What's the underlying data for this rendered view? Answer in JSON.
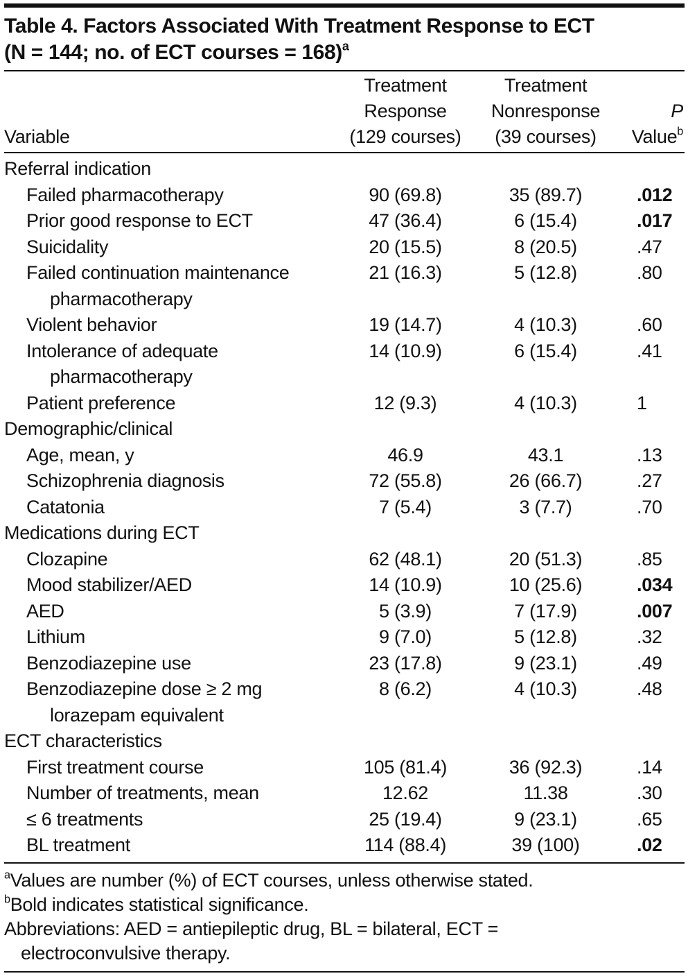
{
  "header": {
    "title_lines": [
      "Table 4. Factors Associated With Treatment Response to ECT",
      "(N = 144; no. of ECT courses = 168)"
    ],
    "title_footnote": "a"
  },
  "table": {
    "columns": [
      {
        "lines": [
          "Variable"
        ]
      },
      {
        "lines": [
          "Treatment",
          "Response",
          "(129 courses)"
        ]
      },
      {
        "lines": [
          "Treatment",
          "Nonresponse",
          "(39 courses)"
        ]
      },
      {
        "lines": [
          "P",
          "Value"
        ],
        "footnote": "b"
      }
    ],
    "sections": [
      {
        "name": "Referral indication",
        "rows": [
          {
            "variable": "Failed pharmacotherapy",
            "response": "90 (69.8)",
            "nonresponse": "35 (89.7)",
            "p": ".012",
            "significant": true
          },
          {
            "variable": "Prior good response to ECT",
            "response": "47 (36.4)",
            "nonresponse": "6 (15.4)",
            "p": ".017",
            "significant": true
          },
          {
            "variable": "Suicidality",
            "response": "20 (15.5)",
            "nonresponse": "8 (20.5)",
            "p": ".47",
            "significant": false
          },
          {
            "variable": "Failed continuation maintenance pharmacotherapy",
            "response": "21 (16.3)",
            "nonresponse": "5 (12.8)",
            "p": ".80",
            "significant": false
          },
          {
            "variable": "Violent behavior",
            "response": "19 (14.7)",
            "nonresponse": "4 (10.3)",
            "p": ".60",
            "significant": false
          },
          {
            "variable": "Intolerance of adequate pharmacotherapy",
            "response": "14 (10.9)",
            "nonresponse": "6 (15.4)",
            "p": ".41",
            "significant": false
          },
          {
            "variable": "Patient preference",
            "response": "12 (9.3)",
            "nonresponse": "4 (10.3)",
            "p": "1",
            "significant": false
          }
        ]
      },
      {
        "name": "Demographic/clinical",
        "rows": [
          {
            "variable": "Age, mean, y",
            "response": "46.9",
            "nonresponse": "43.1",
            "p": ".13",
            "significant": false
          },
          {
            "variable": "Schizophrenia diagnosis",
            "response": "72 (55.8)",
            "nonresponse": "26 (66.7)",
            "p": ".27",
            "significant": false
          },
          {
            "variable": "Catatonia",
            "response": "7 (5.4)",
            "nonresponse": "3 (7.7)",
            "p": ".70",
            "significant": false
          }
        ]
      },
      {
        "name": "Medications during ECT",
        "rows": [
          {
            "variable": "Clozapine",
            "response": "62 (48.1)",
            "nonresponse": "20 (51.3)",
            "p": ".85",
            "significant": false
          },
          {
            "variable": "Mood stabilizer/AED",
            "response": "14 (10.9)",
            "nonresponse": "10 (25.6)",
            "p": ".034",
            "significant": true
          },
          {
            "variable": "AED",
            "response": "5 (3.9)",
            "nonresponse": "7 (17.9)",
            "p": ".007",
            "significant": true
          },
          {
            "variable": "Lithium",
            "response": "9 (7.0)",
            "nonresponse": "5 (12.8)",
            "p": ".32",
            "significant": false
          },
          {
            "variable": "Benzodiazepine use",
            "response": "23 (17.8)",
            "nonresponse": "9 (23.1)",
            "p": ".49",
            "significant": false
          },
          {
            "variable": "Benzodiazepine dose ≥ 2 mg lorazepam equivalent",
            "response": "8 (6.2)",
            "nonresponse": "4 (10.3)",
            "p": ".48",
            "significant": false
          }
        ]
      },
      {
        "name": "ECT characteristics",
        "rows": [
          {
            "variable": "First treatment course",
            "response": "105 (81.4)",
            "nonresponse": "36 (92.3)",
            "p": ".14",
            "significant": false
          },
          {
            "variable": "Number of treatments, mean",
            "response": "12.62",
            "nonresponse": "11.38",
            "p": ".30",
            "significant": false
          },
          {
            "variable": "≤ 6 treatments",
            "response": "25 (19.4)",
            "nonresponse": "9 (23.1)",
            "p": ".65",
            "significant": false
          },
          {
            "variable": "BL treatment",
            "response": "114 (88.4)",
            "nonresponse": "39 (100)",
            "p": ".02",
            "significant": true
          }
        ]
      }
    ]
  },
  "footnotes": [
    {
      "mark": "a",
      "text": "Values are number (%) of ECT courses, unless otherwise stated."
    },
    {
      "mark": "b",
      "text": "Bold indicates statistical significance."
    }
  ],
  "abbreviations": "Abbreviations: AED = antiepileptic drug, BL = bilateral, ECT = electroconvulsive therapy."
}
